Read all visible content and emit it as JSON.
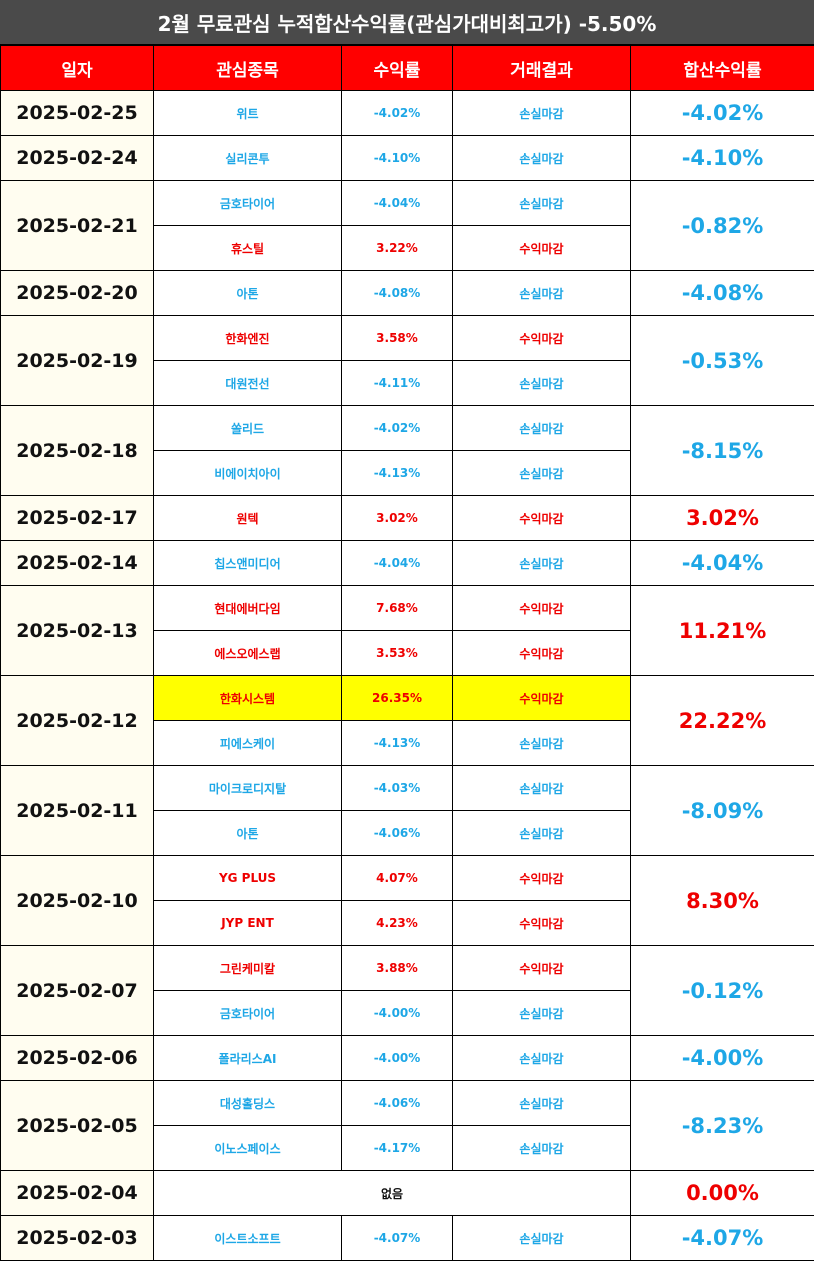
{
  "title": "2월 무료관심 누적합산수익률(관심가대비최고가) -5.50%",
  "headers": [
    "일자",
    "관심종목",
    "수익률",
    "거래결과",
    "합산수익률"
  ],
  "colors": {
    "header_bg": "#ff0000",
    "title_bg": "#4a4a4a",
    "loss": "#1ea7e6",
    "profit": "#ee0000",
    "highlight": "#ffff00"
  },
  "groups": [
    {
      "date": "2025-02-25",
      "total": "-4.02%",
      "total_sign": "neg",
      "rows": [
        {
          "stock": "위트",
          "ret": "-4.02%",
          "result": "손실마감",
          "sign": "neg"
        }
      ]
    },
    {
      "date": "2025-02-24",
      "total": "-4.10%",
      "total_sign": "neg",
      "rows": [
        {
          "stock": "실리콘투",
          "ret": "-4.10%",
          "result": "손실마감",
          "sign": "neg"
        }
      ]
    },
    {
      "date": "2025-02-21",
      "total": "-0.82%",
      "total_sign": "neg",
      "rows": [
        {
          "stock": "금호타이어",
          "ret": "-4.04%",
          "result": "손실마감",
          "sign": "neg"
        },
        {
          "stock": "휴스틸",
          "ret": "3.22%",
          "result": "수익마감",
          "sign": "pos"
        }
      ]
    },
    {
      "date": "2025-02-20",
      "total": "-4.08%",
      "total_sign": "neg",
      "rows": [
        {
          "stock": "아톤",
          "ret": "-4.08%",
          "result": "손실마감",
          "sign": "neg"
        }
      ]
    },
    {
      "date": "2025-02-19",
      "total": "-0.53%",
      "total_sign": "neg",
      "rows": [
        {
          "stock": "한화엔진",
          "ret": "3.58%",
          "result": "수익마감",
          "sign": "pos"
        },
        {
          "stock": "대원전선",
          "ret": "-4.11%",
          "result": "손실마감",
          "sign": "neg"
        }
      ]
    },
    {
      "date": "2025-02-18",
      "total": "-8.15%",
      "total_sign": "neg",
      "rows": [
        {
          "stock": "쏠리드",
          "ret": "-4.02%",
          "result": "손실마감",
          "sign": "neg"
        },
        {
          "stock": "비에이치아이",
          "ret": "-4.13%",
          "result": "손실마감",
          "sign": "neg"
        }
      ]
    },
    {
      "date": "2025-02-17",
      "total": "3.02%",
      "total_sign": "pos",
      "rows": [
        {
          "stock": "원텍",
          "ret": "3.02%",
          "result": "수익마감",
          "sign": "pos"
        }
      ]
    },
    {
      "date": "2025-02-14",
      "total": "-4.04%",
      "total_sign": "neg",
      "rows": [
        {
          "stock": "칩스앤미디어",
          "ret": "-4.04%",
          "result": "손실마감",
          "sign": "neg"
        }
      ]
    },
    {
      "date": "2025-02-13",
      "total": "11.21%",
      "total_sign": "pos",
      "rows": [
        {
          "stock": "현대에버다임",
          "ret": "7.68%",
          "result": "수익마감",
          "sign": "pos"
        },
        {
          "stock": "에스오에스랩",
          "ret": "3.53%",
          "result": "수익마감",
          "sign": "pos"
        }
      ]
    },
    {
      "date": "2025-02-12",
      "total": "22.22%",
      "total_sign": "pos",
      "rows": [
        {
          "stock": "한화시스템",
          "ret": "26.35%",
          "result": "수익마감",
          "sign": "pos",
          "highlight": true
        },
        {
          "stock": "피에스케이",
          "ret": "-4.13%",
          "result": "손실마감",
          "sign": "neg"
        }
      ]
    },
    {
      "date": "2025-02-11",
      "total": "-8.09%",
      "total_sign": "neg",
      "rows": [
        {
          "stock": "마이크로디지탈",
          "ret": "-4.03%",
          "result": "손실마감",
          "sign": "neg"
        },
        {
          "stock": "아톤",
          "ret": "-4.06%",
          "result": "손실마감",
          "sign": "neg"
        }
      ]
    },
    {
      "date": "2025-02-10",
      "total": "8.30%",
      "total_sign": "pos",
      "rows": [
        {
          "stock": "YG PLUS",
          "ret": "4.07%",
          "result": "수익마감",
          "sign": "pos"
        },
        {
          "stock": "JYP ENT",
          "ret": "4.23%",
          "result": "수익마감",
          "sign": "pos"
        }
      ]
    },
    {
      "date": "2025-02-07",
      "total": "-0.12%",
      "total_sign": "neg",
      "rows": [
        {
          "stock": "그린케미칼",
          "ret": "3.88%",
          "result": "수익마감",
          "sign": "pos"
        },
        {
          "stock": "금호타이어",
          "ret": "-4.00%",
          "result": "손실마감",
          "sign": "neg"
        }
      ]
    },
    {
      "date": "2025-02-06",
      "total": "-4.00%",
      "total_sign": "neg",
      "rows": [
        {
          "stock": "폴라리스AI",
          "ret": "-4.00%",
          "result": "손실마감",
          "sign": "neg"
        }
      ]
    },
    {
      "date": "2025-02-05",
      "total": "-8.23%",
      "total_sign": "neg",
      "rows": [
        {
          "stock": "대성홀딩스",
          "ret": "-4.06%",
          "result": "손실마감",
          "sign": "neg"
        },
        {
          "stock": "이노스페이스",
          "ret": "-4.17%",
          "result": "손실마감",
          "sign": "neg"
        }
      ]
    },
    {
      "date": "2025-02-04",
      "total": "0.00%",
      "total_sign": "pos",
      "empty": "없음",
      "rows": []
    },
    {
      "date": "2025-02-03",
      "total": "-4.07%",
      "total_sign": "neg",
      "rows": [
        {
          "stock": "이스트소프트",
          "ret": "-4.07%",
          "result": "손실마감",
          "sign": "neg"
        }
      ]
    }
  ]
}
